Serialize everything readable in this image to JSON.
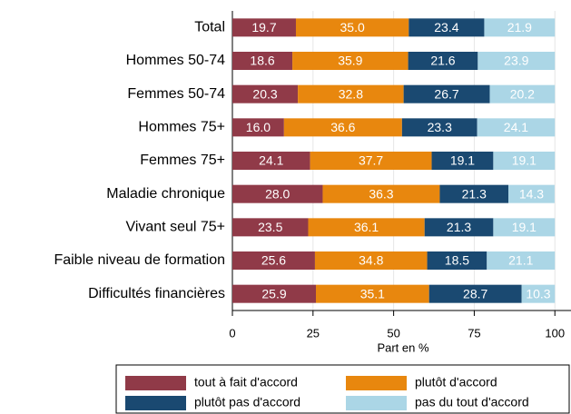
{
  "chart_data": {
    "type": "stacked_barh",
    "categories": [
      "Total",
      "Hommes 50-74",
      "Femmes 50-74",
      "Hommes 75+",
      "Femmes 75+",
      "Maladie chronique",
      "Vivant seul 75+",
      "Faible niveau de formation",
      "Difficultés financières"
    ],
    "series": [
      {
        "name": "tout à fait d'accord",
        "color": "#903a48",
        "values": [
          19.7,
          18.6,
          20.3,
          16.0,
          24.1,
          28.0,
          23.5,
          25.6,
          25.9
        ],
        "value_labels": [
          "19.7",
          "18.6",
          "20.3",
          "16.0",
          "24.1",
          "28.0",
          "23.5",
          "25.6",
          "25.9"
        ]
      },
      {
        "name": "plutôt d'accord",
        "color": "#e8870e",
        "values": [
          35.0,
          35.9,
          32.8,
          36.6,
          37.7,
          36.3,
          36.1,
          34.8,
          35.1
        ],
        "value_labels": [
          "35.0",
          "35.9",
          "32.8",
          "36.6",
          "37.7",
          "36.3",
          "36.1",
          "34.8",
          "35.1"
        ]
      },
      {
        "name": "plutôt pas d'accord",
        "color": "#1a4971",
        "values": [
          23.4,
          21.6,
          26.7,
          23.3,
          19.1,
          21.3,
          21.3,
          18.5,
          28.7
        ],
        "value_labels": [
          "23.4",
          "21.6",
          "26.7",
          "23.3",
          "19.1",
          "21.3",
          "21.3",
          "18.5",
          "28.7"
        ]
      },
      {
        "name": "pas du tout d'accord",
        "color": "#abd6e6",
        "values": [
          21.9,
          23.9,
          20.2,
          24.1,
          19.1,
          14.3,
          19.1,
          21.1,
          10.3
        ],
        "value_labels": [
          "21.9",
          "23.9",
          "20.2",
          "24.1",
          "19.1",
          "14.3",
          "19.1",
          "21.1",
          "10.3"
        ]
      }
    ],
    "x_label": "Part en %",
    "xlim": [
      0,
      105
    ],
    "xticks": [
      0,
      25,
      50,
      75,
      100
    ],
    "grid": true
  }
}
